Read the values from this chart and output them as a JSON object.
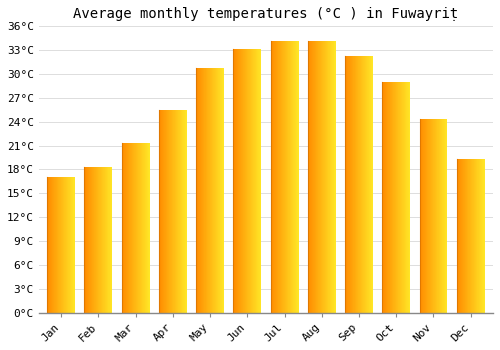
{
  "title": "Average monthly temperatures (°C ) in Fuwayriṭ",
  "months": [
    "Jan",
    "Feb",
    "Mar",
    "Apr",
    "May",
    "Jun",
    "Jul",
    "Aug",
    "Sep",
    "Oct",
    "Nov",
    "Dec"
  ],
  "values": [
    17.0,
    18.3,
    21.3,
    25.5,
    30.7,
    33.2,
    34.2,
    34.2,
    32.3,
    29.0,
    24.3,
    19.3
  ],
  "bar_color_main": "#FFA500",
  "bar_color_light": "#FFD040",
  "ylim": [
    0,
    36
  ],
  "yticks": [
    0,
    3,
    6,
    9,
    12,
    15,
    18,
    21,
    24,
    27,
    30,
    33,
    36
  ],
  "background_color": "#FFFFFF",
  "plot_bg_color": "#FFFFFF",
  "grid_color": "#DDDDDD",
  "title_fontsize": 10,
  "tick_fontsize": 8,
  "font_family": "monospace"
}
